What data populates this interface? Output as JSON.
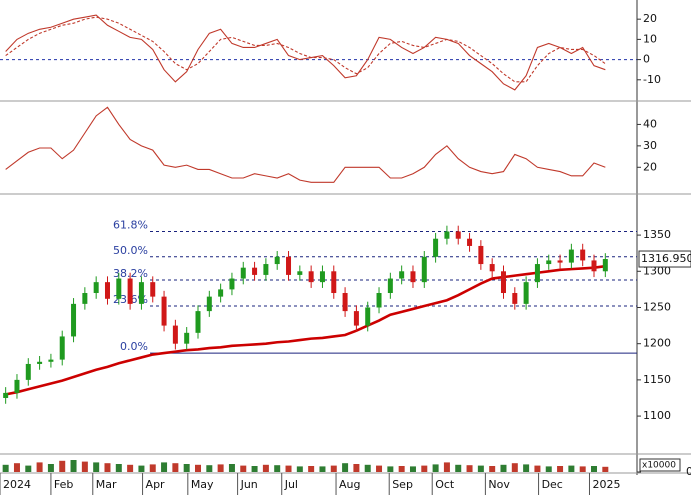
{
  "chart_data": [
    {
      "type": "line",
      "ylim": [
        -20,
        28.5
      ],
      "yticks": [
        20,
        10,
        0,
        -10
      ],
      "reference_line": 0,
      "series": [
        {
          "color": "#c0392b",
          "dash": false,
          "values": [
            4,
            10,
            13,
            15,
            16,
            18,
            20,
            21,
            22,
            17,
            14,
            11,
            10,
            5,
            -5,
            -11,
            -6,
            5,
            13,
            15,
            8,
            6,
            6,
            8,
            10,
            2,
            0,
            1,
            2,
            -3,
            -9,
            -8,
            0,
            11,
            10,
            6,
            3,
            6,
            11,
            10,
            8,
            2,
            -2,
            -6,
            -12,
            -15,
            -8,
            6,
            8,
            6,
            3,
            6,
            -3,
            -5
          ]
        },
        {
          "color": "#c0392b",
          "dash": true,
          "values": [
            2,
            6,
            10,
            13,
            15,
            17,
            18,
            20,
            21,
            20,
            18,
            15,
            12,
            9,
            4,
            -2,
            -5,
            -2,
            4,
            10,
            11,
            9,
            7,
            7,
            8,
            6,
            3,
            1,
            1,
            0,
            -4,
            -7,
            -4,
            3,
            8,
            9,
            7,
            6,
            8,
            10,
            9,
            6,
            2,
            -2,
            -7,
            -11,
            -11,
            -3,
            3,
            6,
            5,
            5,
            2,
            -2
          ]
        }
      ]
    },
    {
      "type": "line",
      "ylim": [
        8,
        50
      ],
      "yticks": [
        40,
        30,
        20
      ],
      "series": [
        {
          "color": "#c0392b",
          "dash": false,
          "values": [
            19,
            23,
            27,
            29,
            29,
            24,
            28,
            36,
            44,
            48,
            40,
            33,
            30,
            28,
            21,
            20,
            21,
            19,
            19,
            17,
            15,
            15,
            17,
            16,
            15,
            17,
            14,
            13,
            13,
            13,
            20,
            20,
            20,
            20,
            15,
            15,
            17,
            20,
            26,
            30,
            24,
            20,
            18,
            17,
            18,
            26,
            24,
            20,
            19,
            18,
            16,
            16,
            22,
            20
          ]
        }
      ]
    },
    {
      "type": "candlestick",
      "ylim": [
        1049,
        1404
      ],
      "yticks": [
        1350,
        1300,
        1250,
        1200,
        1150,
        1100
      ],
      "up_color": "#1f9a1f",
      "down_color": "#d01818",
      "ma_color": "#cc0000",
      "open": [
        1125,
        1132,
        1150,
        1172,
        1175,
        1178,
        1210,
        1255,
        1270,
        1285,
        1262,
        1290,
        1255,
        1285,
        1265,
        1225,
        1200,
        1215,
        1245,
        1265,
        1275,
        1290,
        1305,
        1295,
        1310,
        1320,
        1295,
        1300,
        1285,
        1300,
        1270,
        1245,
        1225,
        1250,
        1270,
        1290,
        1300,
        1285,
        1320,
        1345,
        1355,
        1345,
        1335,
        1310,
        1300,
        1270,
        1255,
        1285,
        1310,
        1315,
        1312,
        1330,
        1315,
        1300
      ],
      "high": [
        1140,
        1158,
        1180,
        1183,
        1186,
        1218,
        1263,
        1278,
        1293,
        1293,
        1298,
        1298,
        1293,
        1293,
        1273,
        1233,
        1223,
        1253,
        1273,
        1283,
        1298,
        1313,
        1313,
        1318,
        1328,
        1328,
        1308,
        1308,
        1308,
        1308,
        1278,
        1253,
        1258,
        1278,
        1298,
        1308,
        1308,
        1328,
        1353,
        1363,
        1363,
        1353,
        1343,
        1318,
        1308,
        1278,
        1293,
        1318,
        1323,
        1323,
        1338,
        1338,
        1323,
        1325
      ],
      "low": [
        1117,
        1124,
        1142,
        1164,
        1167,
        1170,
        1202,
        1247,
        1262,
        1254,
        1254,
        1247,
        1247,
        1257,
        1217,
        1192,
        1192,
        1207,
        1237,
        1257,
        1267,
        1282,
        1287,
        1287,
        1302,
        1287,
        1287,
        1277,
        1277,
        1262,
        1237,
        1217,
        1217,
        1242,
        1262,
        1282,
        1277,
        1277,
        1312,
        1337,
        1337,
        1327,
        1302,
        1292,
        1262,
        1247,
        1247,
        1277,
        1302,
        1304,
        1304,
        1307,
        1292,
        1292
      ],
      "close": [
        1132,
        1150,
        1172,
        1175,
        1178,
        1210,
        1255,
        1270,
        1285,
        1262,
        1290,
        1255,
        1285,
        1265,
        1225,
        1200,
        1215,
        1245,
        1265,
        1275,
        1290,
        1305,
        1295,
        1310,
        1320,
        1295,
        1300,
        1285,
        1300,
        1270,
        1245,
        1225,
        1250,
        1270,
        1290,
        1300,
        1285,
        1320,
        1345,
        1355,
        1345,
        1335,
        1310,
        1300,
        1270,
        1255,
        1285,
        1310,
        1315,
        1312,
        1330,
        1315,
        1300,
        1316.95
      ],
      "ma": [
        1130,
        1133,
        1137,
        1141,
        1145,
        1149,
        1154,
        1159,
        1164,
        1168,
        1173,
        1177,
        1181,
        1185,
        1187,
        1189,
        1191,
        1192,
        1194,
        1195,
        1197,
        1198,
        1199,
        1200,
        1202,
        1203,
        1205,
        1207,
        1208,
        1210,
        1212,
        1218,
        1225,
        1232,
        1240,
        1244,
        1248,
        1252,
        1256,
        1260,
        1267,
        1275,
        1283,
        1290,
        1292,
        1294,
        1296,
        1298,
        1300,
        1302,
        1303,
        1304,
        1305,
        1307
      ],
      "last_label": "1316.950",
      "fib_levels": [
        {
          "label": "61.8%",
          "value": 1355
        },
        {
          "label": "50.0%",
          "value": 1320
        },
        {
          "label": "38.2%",
          "value": 1288
        },
        {
          "label": "23.6%",
          "value": 1252
        },
        {
          "label": "0.0%",
          "value": 1187
        }
      ]
    },
    {
      "type": "bar",
      "ylim": [
        0,
        200
      ],
      "yticks": [
        0
      ],
      "unit": "x10000",
      "color": "#c0392b",
      "bar_color": "#2e7d32",
      "values": [
        90,
        110,
        80,
        120,
        100,
        140,
        150,
        130,
        120,
        110,
        100,
        90,
        80,
        95,
        120,
        110,
        100,
        90,
        85,
        95,
        100,
        80,
        75,
        90,
        85,
        80,
        70,
        75,
        70,
        80,
        110,
        100,
        90,
        80,
        70,
        75,
        70,
        80,
        95,
        120,
        90,
        85,
        80,
        75,
        90,
        110,
        95,
        80,
        70,
        75,
        80,
        70,
        75,
        65
      ],
      "xlim": [
        -0.5,
        55.8
      ],
      "xticks": [
        {
          "value": -0.5,
          "label": "2024"
        },
        {
          "value": 4.0,
          "label": "Feb"
        },
        {
          "value": 7.7,
          "label": "Mar"
        },
        {
          "value": 12.1,
          "label": "Apr"
        },
        {
          "value": 16.1,
          "label": "May"
        },
        {
          "value": 20.5,
          "label": "Jun"
        },
        {
          "value": 24.4,
          "label": "Jul"
        },
        {
          "value": 29.2,
          "label": "Aug"
        },
        {
          "value": 33.9,
          "label": "Sep"
        },
        {
          "value": 37.7,
          "label": "Oct"
        },
        {
          "value": 42.4,
          "label": "Nov"
        },
        {
          "value": 47.1,
          "label": "Dec"
        },
        {
          "value": 51.6,
          "label": "2025"
        }
      ]
    }
  ]
}
